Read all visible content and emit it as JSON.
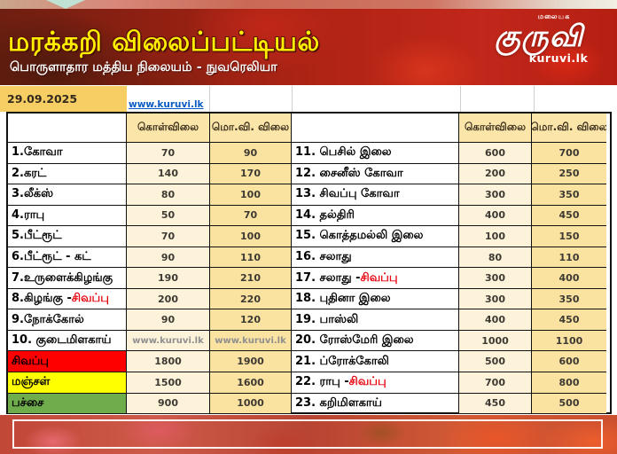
{
  "banner": {
    "title": "மரக்கறி விலைப்பட்டியல்",
    "subtitle": "பொருளாதார மத்திய நிலையம் - நுவரெலியா",
    "logo": {
      "top": "மலையக",
      "main": "குருவி",
      "sub": "kuruvi.lk"
    }
  },
  "date": "29.09.2025",
  "link": "www.kuruvi.lk",
  "table": {
    "col_headers": {
      "buy": "கொள்விலை",
      "wholesale": "மொ.வி. விலை"
    },
    "rows": [
      {
        "left": {
          "label": "1.கோவா",
          "buy": "70",
          "wholesale": "90"
        },
        "right": {
          "label": "11. பெசில் இலை",
          "buy": "600",
          "wholesale": "700"
        }
      },
      {
        "left": {
          "label": "2.கரட்",
          "buy": "140",
          "wholesale": "170"
        },
        "right": {
          "label": "12. சைனீஸ் கோவா",
          "buy": "200",
          "wholesale": "250"
        }
      },
      {
        "left": {
          "label": "3.லீக்ஸ்",
          "buy": "80",
          "wholesale": "100"
        },
        "right": {
          "label": "13. சிவப்பு கோவா",
          "buy": "300",
          "wholesale": "350"
        }
      },
      {
        "left": {
          "label": "4.ராபு",
          "buy": "50",
          "wholesale": "70"
        },
        "right": {
          "label": "14. தல்திரி",
          "buy": "400",
          "wholesale": "450"
        }
      },
      {
        "left": {
          "label": "5.பீட்ரூட்",
          "buy": "70",
          "wholesale": "100"
        },
        "right": {
          "label": "15. கொத்தமல்லி இலை",
          "buy": "100",
          "wholesale": "150"
        }
      },
      {
        "left": {
          "label": "6.பீட்ரூட் - கட்",
          "buy": "90",
          "wholesale": "110"
        },
        "right": {
          "label": "16. சலாது",
          "buy": "80",
          "wholesale": "110"
        }
      },
      {
        "left": {
          "label": "7.உருளைக்கிழங்கு",
          "buy": "190",
          "wholesale": "210"
        },
        "right": {
          "label": "17. சலாது - ",
          "accent": "சிவப்பு",
          "buy": "300",
          "wholesale": "400"
        }
      },
      {
        "left": {
          "label": "8.கிழங்கு - ",
          "accent": "சிவப்பு",
          "buy": "200",
          "wholesale": "220"
        },
        "right": {
          "label": "18. புதினா இலை",
          "buy": "300",
          "wholesale": "350"
        }
      },
      {
        "left": {
          "label": "9.நோக்கோல்",
          "buy": "90",
          "wholesale": "120"
        },
        "right": {
          "label": "19. பாஸ்லி",
          "buy": "400",
          "wholesale": "450"
        }
      },
      {
        "left": {
          "label": "10. குடைமிளகாய்",
          "buy": "www.kuruvi.lk",
          "wholesale": "www.kuruvi.lk",
          "muted": true
        },
        "right": {
          "label": "20. ரோஸ்மேரி இலை",
          "buy": "1000",
          "wholesale": "1100"
        }
      },
      {
        "left": {
          "label": "சிவப்பு",
          "label_bg": "#fe0000",
          "buy": "1800",
          "wholesale": "1900"
        },
        "right": {
          "label": "21. ப்ரோக்கோலி",
          "buy": "500",
          "wholesale": "600"
        }
      },
      {
        "left": {
          "label": "மஞ்சள்",
          "label_bg": "#ffff00",
          "buy": "1500",
          "wholesale": "1600"
        },
        "right": {
          "label": "22. ராபு - ",
          "accent": "சிவப்பு",
          "buy": "700",
          "wholesale": "800"
        }
      },
      {
        "left": {
          "label": "பச்சை",
          "label_bg": "#6fac4c",
          "buy": "900",
          "wholesale": "1000"
        },
        "right": {
          "label": "23. கறிமிளகாய்",
          "buy": "450",
          "wholesale": "500"
        }
      }
    ]
  },
  "colors": {
    "accent_red_text": "#e8000d",
    "buy_column_bg": "#fcf3da",
    "wholesale_column_bg": "#fae2a0",
    "header_cell_bg": "#fbe5a8",
    "date_cell_bg": "#f6ce63",
    "row_red_bg": "#fe0000",
    "row_yellow_bg": "#ffff00",
    "row_green_bg": "#6fac4c",
    "title_yellow": "#ffee00"
  }
}
